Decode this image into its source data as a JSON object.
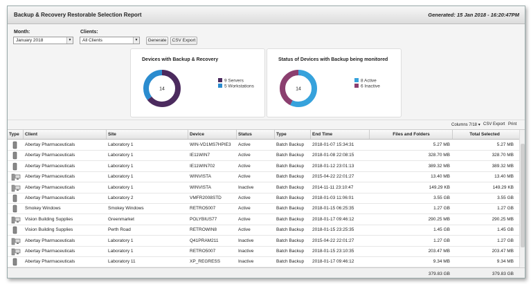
{
  "header": {
    "title": "Backup & Recovery Restorable Selection Report",
    "generated": "Generated: 15 Jan 2018 - 16:20:47PM"
  },
  "controls": {
    "month_label": "Month:",
    "month_value": "January 2018",
    "clients_label": "Clients:",
    "clients_value": "All Clients",
    "buttons": [
      "Generate",
      "CSV Export"
    ]
  },
  "donuts": [
    {
      "title": "Devices with Backup & Recovery",
      "center": "14",
      "segments": [
        {
          "label": "9 Servers",
          "value": 9,
          "color": "#4b2a5e"
        },
        {
          "label": "5 Workstations",
          "value": 5,
          "color": "#2b8ccf"
        }
      ]
    },
    {
      "title": "Status of Devices with Backup being monitored",
      "center": "14",
      "segments": [
        {
          "label": "8 Active",
          "value": 8,
          "color": "#36a2dc"
        },
        {
          "label": "6 Inactive",
          "value": 6,
          "color": "#8b3f6f"
        }
      ]
    }
  ],
  "toolbar": [
    "Columns 7/18",
    "CSV Export",
    "Print"
  ],
  "table": {
    "columns": [
      "Type",
      "Client",
      "Site",
      "Device",
      "Status",
      "Type",
      "End Time",
      "Files and Folders",
      "Total Selected"
    ],
    "rows": [
      {
        "icon": "server",
        "cells": [
          "Abertay Pharmaceuticals",
          "Laboratory 1",
          "WIN-VD1MS7HPIE3",
          "Active",
          "Batch Backup",
          "2018-01-07 15:34:31",
          "5.27 MB",
          "5.27 MB"
        ]
      },
      {
        "icon": "server",
        "cells": [
          "Abertay Pharmaceuticals",
          "Laboratory 1",
          "IE11WIN7",
          "Active",
          "Batch Backup",
          "2018-01-08 22:08:15",
          "328.70 MB",
          "328.70 MB"
        ]
      },
      {
        "icon": "server",
        "cells": [
          "Abertay Pharmaceuticals",
          "Laboratory 1",
          "IE11WIN702",
          "Active",
          "Batch Backup",
          "2018-01-12 23:01:13",
          "389.32 MB",
          "389.32 MB"
        ]
      },
      {
        "icon": "workstation",
        "cells": [
          "Abertay Pharmaceuticals",
          "Laboratory 1",
          "WINVISTA",
          "Active",
          "Batch Backup",
          "2015-04-22 22:01:27",
          "13.40 MB",
          "13.40 MB"
        ]
      },
      {
        "icon": "workstation",
        "cells": [
          "Abertay Pharmaceuticals",
          "Laboratory 1",
          "WINVISTA",
          "Inactive",
          "Batch Backup",
          "2014-11-11 23:10:47",
          "149.29 KB",
          "149.29 KB"
        ]
      },
      {
        "icon": "server",
        "cells": [
          "Abertay Pharmaceuticals",
          "Laboratory 2",
          "VMFR2008STD",
          "Active",
          "Batch Backup",
          "2018-01-03 11:06:01",
          "3.55 GB",
          "3.55 GB"
        ]
      },
      {
        "icon": "server",
        "cells": [
          "Smokey Windows",
          "Smokey Windows",
          "RETRO5007",
          "Active",
          "Batch Backup",
          "2018-01-15 06:25:35",
          "1.27 GB",
          "1.27 GB"
        ]
      },
      {
        "icon": "workstation",
        "cells": [
          "Vision Building Supplies",
          "Greenmarket",
          "POLYBIUS77",
          "Active",
          "Batch Backup",
          "2018-01-17 09:46:12",
          "290.25 MB",
          "290.25 MB"
        ]
      },
      {
        "icon": "server",
        "cells": [
          "Vision Building Supplies",
          "Perth Road",
          "RETROWIN8",
          "Active",
          "Batch Backup",
          "2018-01-15 23:25:35",
          "1.45 GB",
          "1.45 GB"
        ]
      },
      {
        "icon": "workstation",
        "cells": [
          "Abertay Pharmaceuticals",
          "Laboratory 1",
          "Q41PRAM211",
          "Inactive",
          "Batch Backup",
          "2015-04-22 22:01:27",
          "1.27 GB",
          "1.27 GB"
        ]
      },
      {
        "icon": "workstation",
        "cells": [
          "Abertay Pharmaceuticals",
          "Laboratory 1",
          "RETRO5007",
          "Inactive",
          "Batch Backup",
          "2018-01-15 23:10:35",
          "203.47 MB",
          "203.47 MB"
        ]
      },
      {
        "icon": "server",
        "cells": [
          "Abertay Pharmaceuticals",
          "Laboratory 11",
          "XP_REGRESS",
          "Inactive",
          "Batch Backup",
          "2018-01-17 09:46:12",
          "9.34 MB",
          "9.34 MB"
        ]
      }
    ],
    "totals": [
      "379.83 GB",
      "379.83 GB"
    ]
  }
}
